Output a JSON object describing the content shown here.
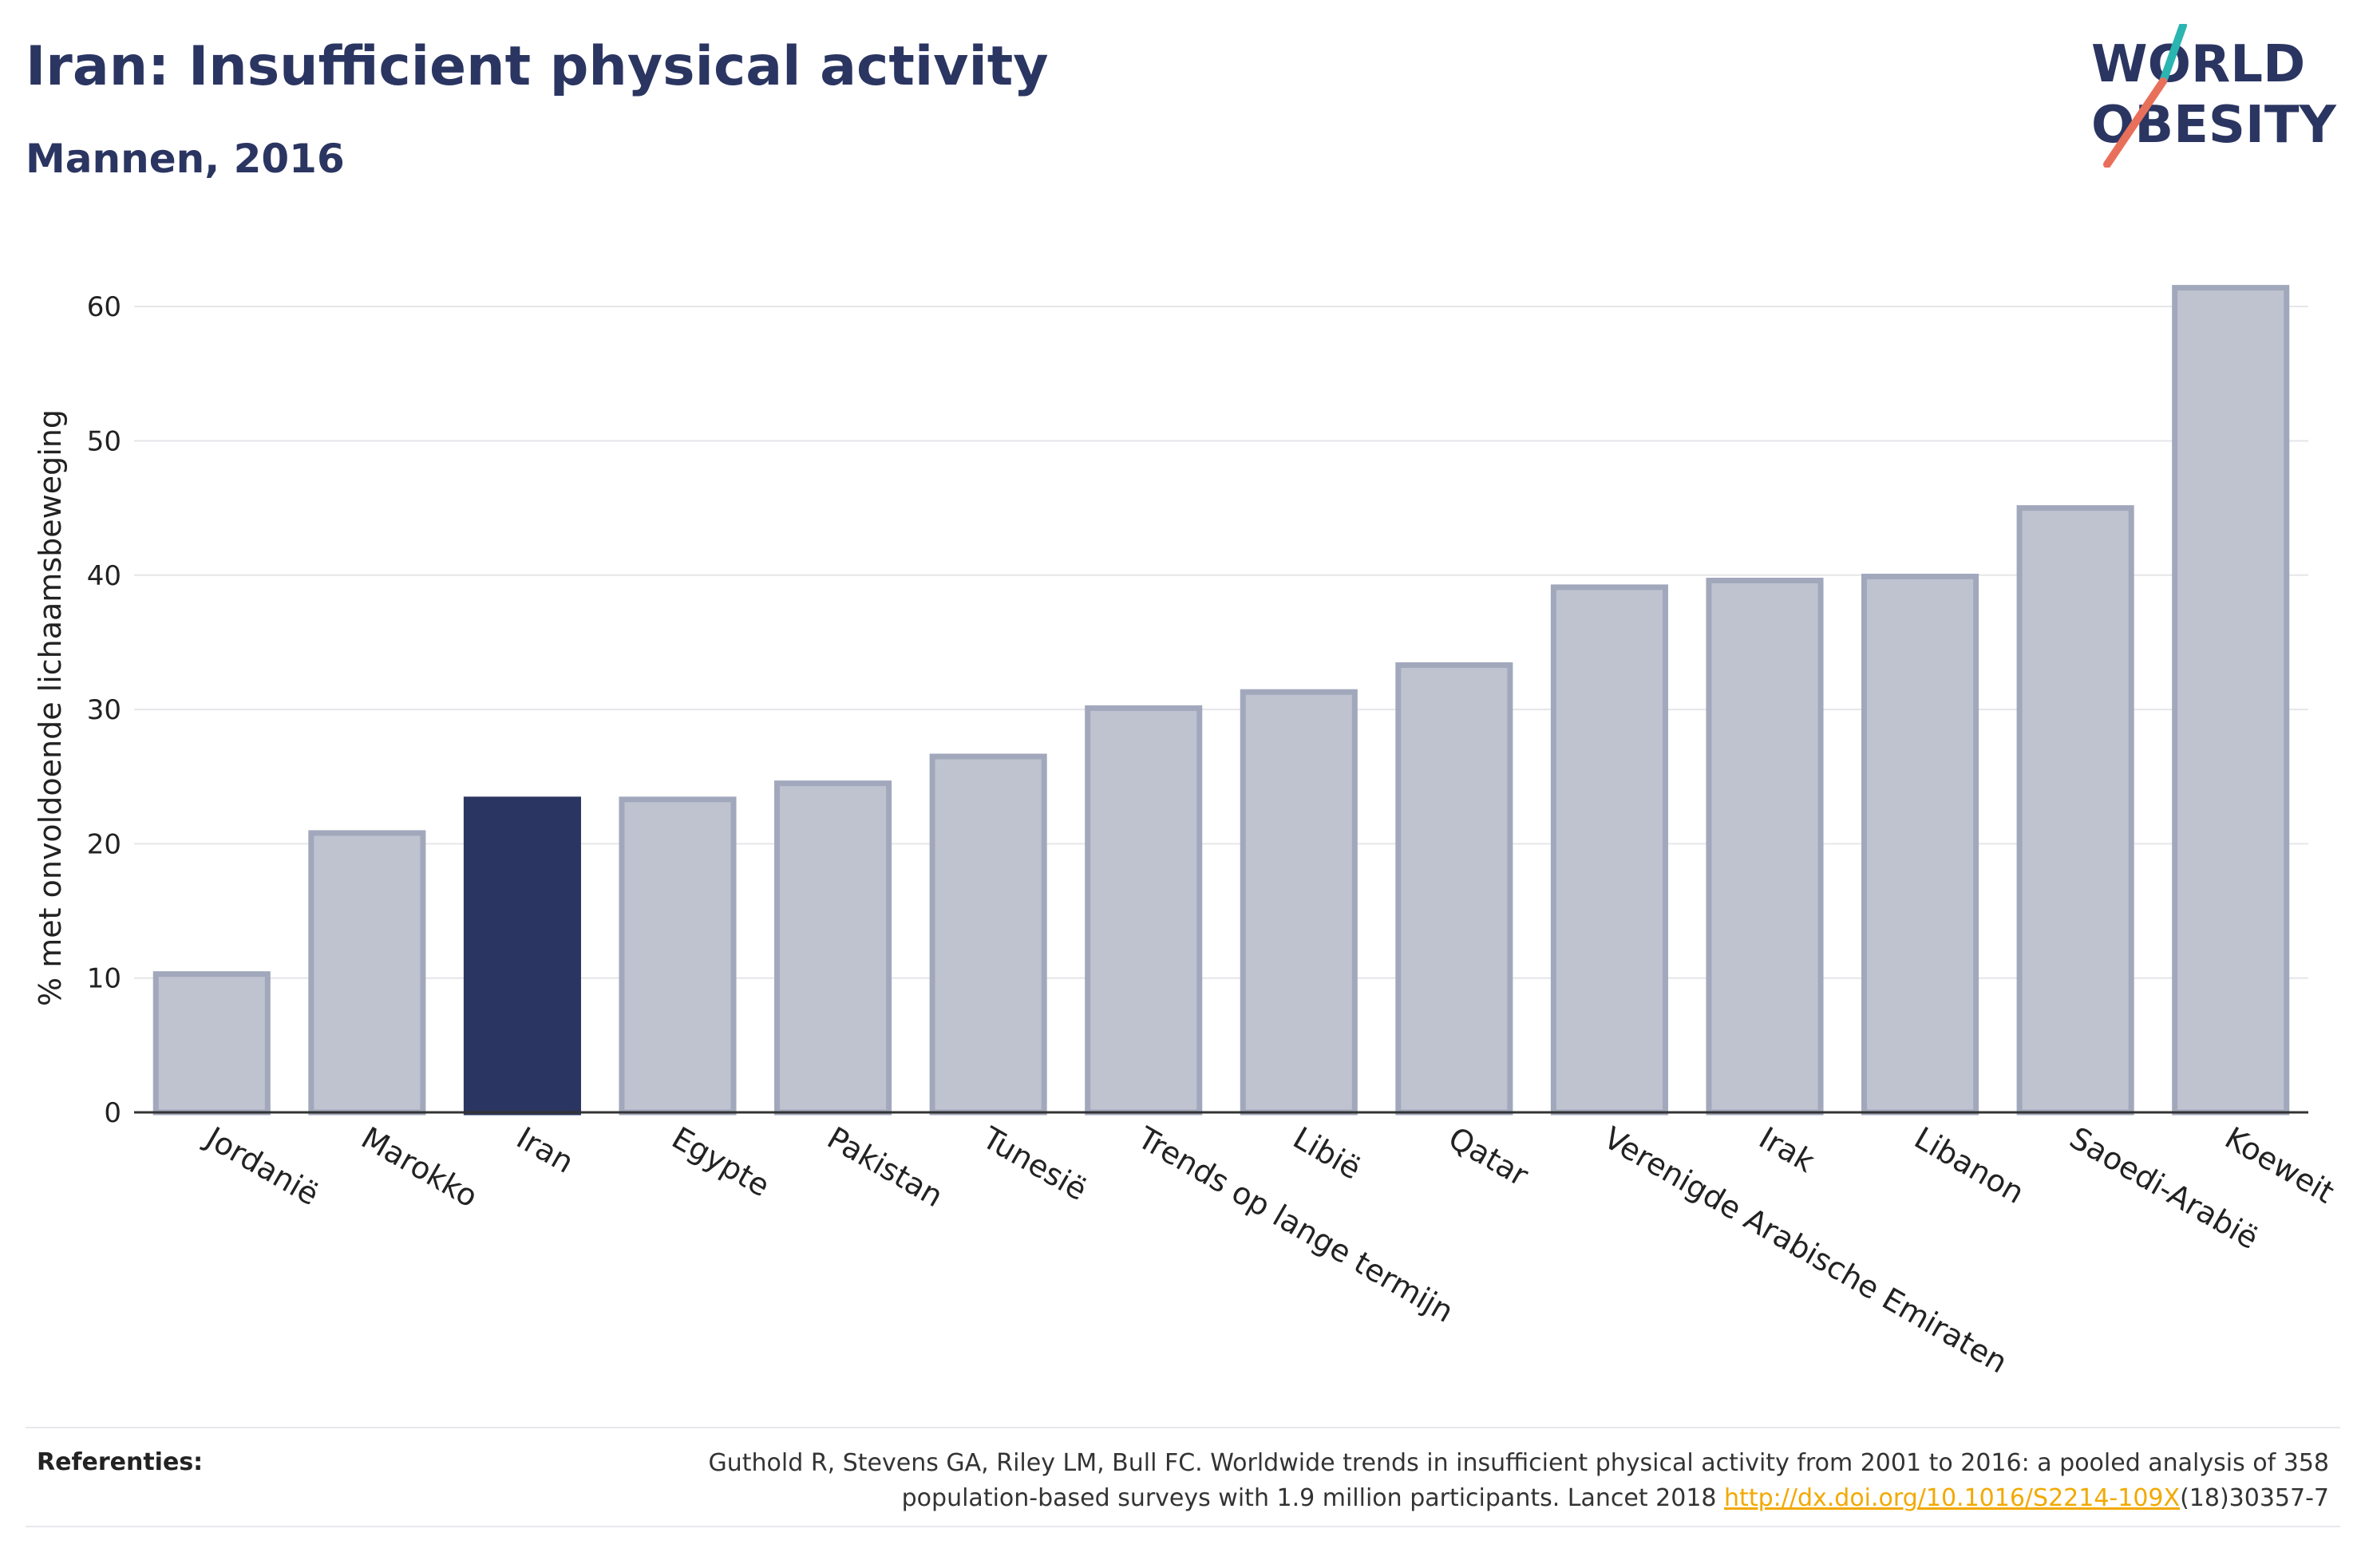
{
  "header": {
    "title": "Iran: Insufficient physical activity",
    "subtitle": "Mannen, 2016"
  },
  "logo": {
    "line1": "WORLD",
    "line2": "OBESITY",
    "accent_teal": "#2bb5b0",
    "accent_coral": "#e8705b"
  },
  "chart_data": {
    "type": "bar",
    "ylabel": "% met onvoldoende lichaamsbeweging",
    "ylim": [
      0,
      65
    ],
    "yticks": [
      0,
      10,
      20,
      30,
      40,
      50,
      60
    ],
    "grid": true,
    "categories": [
      "Jordanië",
      "Marokko",
      "Iran",
      "Egypte",
      "Pakistan",
      "Tunesië",
      "Trends op lange termijn",
      "Libië",
      "Qatar",
      "Verenigde Arabische Emiraten",
      "Irak",
      "Libanon",
      "Saoedi-Arabië",
      "Koeweit"
    ],
    "values": [
      10.3,
      20.8,
      23.3,
      23.3,
      24.5,
      26.5,
      30.1,
      31.3,
      33.3,
      39.1,
      39.6,
      39.9,
      45.0,
      61.4
    ],
    "highlight": "Iran",
    "colors": {
      "bar": "#bfc3d0",
      "bar_edge": "#a2a8bc",
      "highlight": "#2b3561",
      "axis": "#333333",
      "grid": "#e6e6ea"
    }
  },
  "references": {
    "label": "Referenties:",
    "text_line1": "Guthold R, Stevens GA, Riley LM, Bull FC. Worldwide trends in insufficient physical activity from 2001 to 2016: a pooled analysis of 358",
    "text_line2_pre": "population-based surveys with 1.9 million participants. Lancet 2018 ",
    "link": "http://dx.doi.org/10.1016/S2214-109X",
    "text_line2_post": "(18)30357-7"
  }
}
